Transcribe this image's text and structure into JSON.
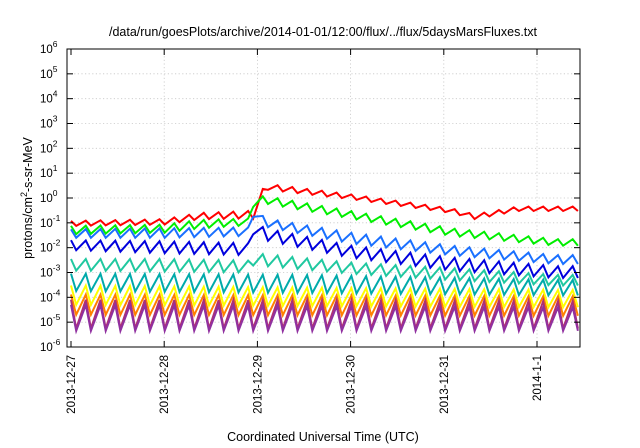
{
  "chart_data": {
    "type": "line",
    "title": "/data/run/goesPlots/archive/2014-01-01/12:00/flux/../flux/5daysMarsFluxes.txt",
    "xlabel": "Coordinated Universal Time (UTC)",
    "ylabel": {
      "prefix": "protons/cm",
      "sup": "2",
      "suffix": "-s-sr-MeV"
    },
    "yscale": "log",
    "ylim": [
      1e-06,
      1000000.0
    ],
    "xlim": [
      "2013-12-27",
      "2014-01-01 13:00"
    ],
    "grid": true,
    "legend": "none",
    "x_ticks": [
      "2013-12-27",
      "2013-12-28",
      "2013-12-29",
      "2013-12-30",
      "2013-12-31",
      "2014-1-1"
    ],
    "y_ticks": [
      {
        "base": "10",
        "exp": "6"
      },
      {
        "base": "10",
        "exp": "5"
      },
      {
        "base": "10",
        "exp": "4"
      },
      {
        "base": "10",
        "exp": "3"
      },
      {
        "base": "10",
        "exp": "2"
      },
      {
        "base": "10",
        "exp": "1"
      },
      {
        "base": "10",
        "exp": "0"
      },
      {
        "base": "10",
        "exp": "-1"
      },
      {
        "base": "10",
        "exp": "-2"
      },
      {
        "base": "10",
        "exp": "-3"
      },
      {
        "base": "10",
        "exp": "-4"
      },
      {
        "base": "10",
        "exp": "-5"
      },
      {
        "base": "10",
        "exp": "-6"
      }
    ],
    "sawtooth_period_hours": 3.8,
    "series": [
      {
        "color": "#ff0000",
        "top": [
          [
            0,
            0.12
          ],
          [
            24,
            0.14
          ],
          [
            33,
            0.25
          ],
          [
            46,
            0.3
          ],
          [
            47,
            0.33
          ],
          [
            50,
            3.8
          ],
          [
            72,
            1.4
          ],
          [
            98,
            0.38
          ],
          [
            104,
            0.22
          ],
          [
            115,
            0.45
          ],
          [
            125,
            0.45
          ]
        ],
        "bottom": [
          [
            0,
            0.075
          ],
          [
            24,
            0.085
          ],
          [
            33,
            0.14
          ],
          [
            46,
            0.15
          ],
          [
            47,
            0.15
          ],
          [
            50,
            2.2
          ],
          [
            72,
            0.9
          ],
          [
            98,
            0.25
          ],
          [
            104,
            0.14
          ],
          [
            115,
            0.3
          ],
          [
            125,
            0.3
          ]
        ]
      },
      {
        "color": "#00ee00",
        "top": [
          [
            0,
            0.075
          ],
          [
            24,
            0.085
          ],
          [
            33,
            0.13
          ],
          [
            46,
            0.15
          ],
          [
            47,
            1
          ],
          [
            50,
            1.2
          ],
          [
            72,
            0.3
          ],
          [
            98,
            0.06
          ],
          [
            125,
            0.022
          ]
        ],
        "bottom": [
          [
            0,
            0.035
          ],
          [
            24,
            0.04
          ],
          [
            33,
            0.06
          ],
          [
            46,
            0.08
          ],
          [
            47,
            0.5
          ],
          [
            50,
            0.6
          ],
          [
            72,
            0.15
          ],
          [
            98,
            0.03
          ],
          [
            125,
            0.012
          ]
        ]
      },
      {
        "color": "#1a70ff",
        "top": [
          [
            0,
            0.055
          ],
          [
            24,
            0.06
          ],
          [
            46,
            0.065
          ],
          [
            47,
            0.5
          ],
          [
            50,
            0.15
          ],
          [
            72,
            0.04
          ],
          [
            98,
            0.012
          ],
          [
            125,
            0.005
          ]
        ],
        "bottom": [
          [
            0,
            0.025
          ],
          [
            24,
            0.025
          ],
          [
            46,
            0.03
          ],
          [
            47,
            0.2
          ],
          [
            50,
            0.07
          ],
          [
            72,
            0.015
          ],
          [
            98,
            0.005
          ],
          [
            125,
            0.0022
          ]
        ]
      },
      {
        "color": "#0000dd",
        "top": [
          [
            0,
            0.02
          ],
          [
            24,
            0.018
          ],
          [
            46,
            0.015
          ],
          [
            47,
            0.11
          ],
          [
            50,
            0.06
          ],
          [
            72,
            0.012
          ],
          [
            98,
            0.004
          ],
          [
            125,
            0.0018
          ]
        ],
        "bottom": [
          [
            0,
            0.008
          ],
          [
            24,
            0.006
          ],
          [
            46,
            0.005
          ],
          [
            47,
            0.04
          ],
          [
            50,
            0.02
          ],
          [
            72,
            0.004
          ],
          [
            98,
            0.0012
          ],
          [
            125,
            0.0006
          ]
        ]
      },
      {
        "color": "#20c8a0",
        "top": [
          [
            0,
            0.0035
          ],
          [
            24,
            0.0035
          ],
          [
            46,
            0.003
          ],
          [
            47,
            0.006
          ],
          [
            72,
            0.0025
          ],
          [
            98,
            0.0015
          ],
          [
            125,
            0.0008
          ]
        ],
        "bottom": [
          [
            0,
            0.0012
          ],
          [
            24,
            0.0011
          ],
          [
            46,
            0.001
          ],
          [
            47,
            0.002
          ],
          [
            72,
            0.0009
          ],
          [
            98,
            0.0005
          ],
          [
            125,
            0.0003
          ]
        ]
      },
      {
        "color": "#00aaaa",
        "top": [
          [
            0,
            0.0009
          ],
          [
            60,
            0.0008
          ],
          [
            125,
            0.0005
          ]
        ],
        "bottom": [
          [
            0,
            0.00018
          ],
          [
            60,
            0.00015
          ],
          [
            125,
            0.00012
          ]
        ]
      },
      {
        "color": "#ffff00",
        "top": [
          [
            0,
            0.0003
          ],
          [
            125,
            0.0002
          ]
        ],
        "bottom": [
          [
            0,
            5e-05
          ],
          [
            125,
            4e-05
          ]
        ]
      },
      {
        "color": "#ff8000",
        "top": [
          [
            0,
            0.00013
          ],
          [
            125,
            0.00011
          ]
        ],
        "bottom": [
          [
            0,
            2e-05
          ],
          [
            125,
            1.8e-05
          ]
        ]
      },
      {
        "color": "#b03070",
        "top": [
          [
            0,
            8e-05
          ],
          [
            125,
            7e-05
          ]
        ],
        "bottom": [
          [
            0,
            5.5e-06
          ],
          [
            125,
            5.5e-06
          ]
        ]
      },
      {
        "color": "#9030a0",
        "top": [
          [
            0,
            5e-05
          ],
          [
            125,
            4e-05
          ]
        ],
        "bottom": [
          [
            0,
            4.5e-06
          ],
          [
            125,
            4.5e-06
          ]
        ]
      }
    ]
  }
}
